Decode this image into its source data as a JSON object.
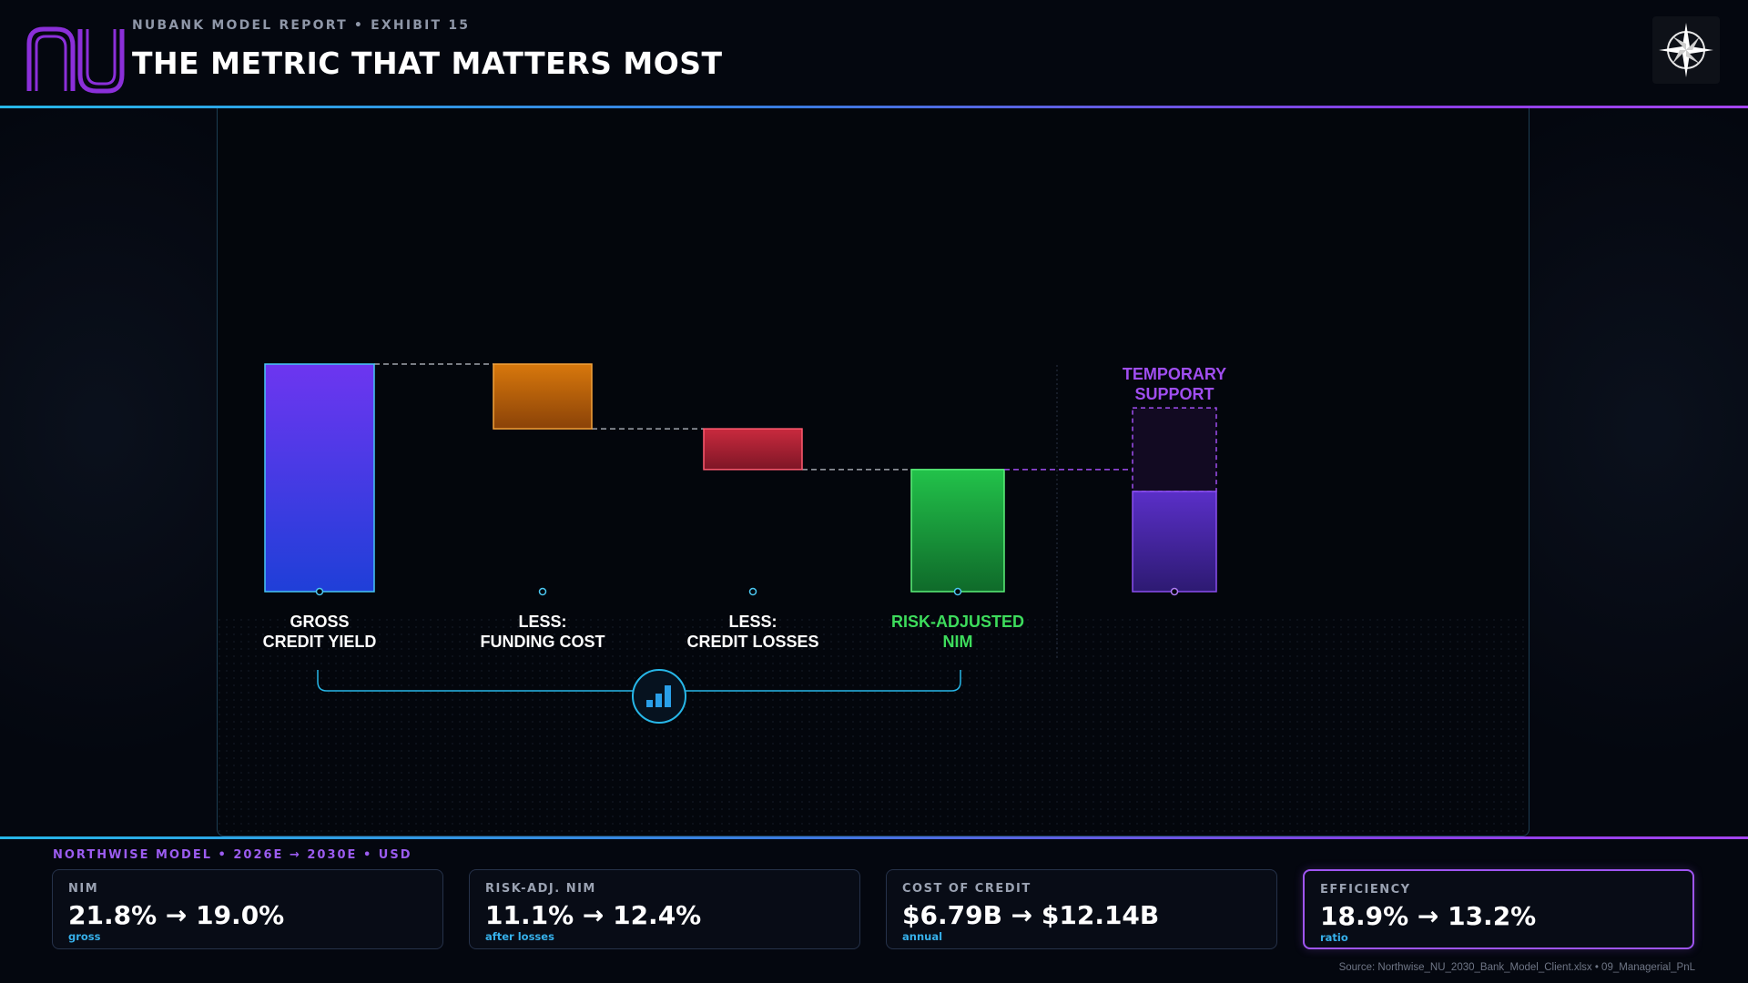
{
  "header": {
    "eyebrow": "NUBANK MODEL REPORT • EXHIBIT 15",
    "title": "THE METRIC THAT MATTERS MOST",
    "logo_icon": "nubank-logo-icon",
    "badge_icon": "compass-rose-icon"
  },
  "chart_data": {
    "type": "waterfall",
    "title": "",
    "xlabel": "",
    "ylabel": "",
    "grid": false,
    "unit": "%",
    "steps": [
      {
        "key": "gross",
        "label_lines": [
          "GROSS",
          "CREDIT YIELD"
        ],
        "kind": "total",
        "start": 0,
        "end": 21.8,
        "color": "#6d36f0"
      },
      {
        "key": "funding",
        "label_lines": [
          "LESS:",
          "FUNDING COST"
        ],
        "kind": "decrease",
        "start": 21.8,
        "end": 15.6,
        "color": "#d8780c"
      },
      {
        "key": "losses",
        "label_lines": [
          "LESS:",
          "CREDIT LOSSES"
        ],
        "kind": "decrease",
        "start": 15.6,
        "end": 11.7,
        "color": "#c92a3e"
      },
      {
        "key": "ranim",
        "label_lines": [
          "RISK-ADJUSTED",
          "NIM"
        ],
        "kind": "total",
        "start": 0,
        "end": 11.7,
        "color": "#22c24a"
      }
    ],
    "side_bar": {
      "label_lines": [
        "TEMPORARY",
        "SUPPORT"
      ],
      "solid_value": 9.6,
      "dashed_to": 17.6,
      "color": "#7c3aed"
    },
    "ylim": [
      0,
      21.8
    ]
  },
  "footer": {
    "eyebrow": "NORTHWISE MODEL • 2026E → 2030E • USD",
    "cards": [
      {
        "label": "NIM",
        "value": "21.8% → 19.0%",
        "sub": "gross",
        "active": false
      },
      {
        "label": "RISK-ADJ. NIM",
        "value": "11.1% → 12.4%",
        "sub": "after losses",
        "active": false
      },
      {
        "label": "COST OF CREDIT",
        "value": "$6.79B → $12.14B",
        "sub": "annual",
        "active": false
      },
      {
        "label": "EFFICIENCY",
        "value": "18.9% → 13.2%",
        "sub": "ratio",
        "active": true
      }
    ],
    "source": "Source: Northwise_NU_2030_Bank_Model_Client.xlsx • 09_Managerial_PnL"
  },
  "colors": {
    "accent_cyan": "#27b7e8",
    "accent_purple": "#9f55f2",
    "green_label": "#3ddc5c",
    "purple_label": "#a04ef0"
  }
}
